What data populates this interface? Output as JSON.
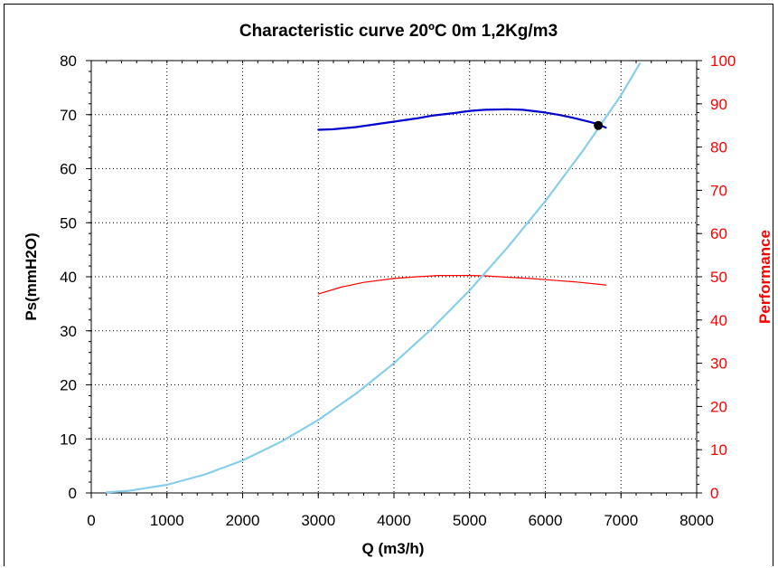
{
  "chart_data": {
    "type": "line",
    "title": "Characteristic curve 20ºC 0m 1,2Kg/m3",
    "xlabel": "Q (m3/h)",
    "ylabel": "Ps(mmH2O)",
    "y2label": "Performance",
    "xlim": [
      0,
      8000
    ],
    "ylim": [
      0,
      80
    ],
    "y2lim": [
      0,
      100
    ],
    "xticks": [
      "0",
      "1000",
      "2000",
      "3000",
      "4000",
      "5000",
      "6000",
      "7000",
      "8000"
    ],
    "yticks": [
      "0",
      "10",
      "20",
      "30",
      "40",
      "50",
      "60",
      "70",
      "80"
    ],
    "y2ticks": [
      "0",
      "10",
      "20",
      "30",
      "40",
      "50",
      "60",
      "70",
      "80",
      "90",
      "100"
    ],
    "grid": true,
    "series": [
      {
        "color": "#0000cc",
        "axis": "left",
        "x": [
          3000,
          3200,
          3500,
          3800,
          4000,
          4300,
          4500,
          4800,
          5000,
          5200,
          5500,
          5700,
          6000,
          6200,
          6400,
          6600,
          6700,
          6800
        ],
        "y": [
          67.2,
          67.3,
          67.7,
          68.3,
          68.7,
          69.3,
          69.8,
          70.3,
          70.7,
          70.9,
          71.0,
          70.9,
          70.4,
          69.9,
          69.3,
          68.6,
          68.2,
          67.6
        ]
      },
      {
        "color": "#ff0000",
        "axis": "right",
        "x": [
          3000,
          3300,
          3600,
          4000,
          4300,
          4600,
          4800,
          5000,
          5200,
          5500,
          5800,
          6100,
          6400,
          6800
        ],
        "y": [
          46.0,
          47.6,
          48.7,
          49.6,
          50.0,
          50.3,
          50.3,
          50.3,
          50.2,
          49.9,
          49.6,
          49.2,
          48.8,
          48.1
        ]
      },
      {
        "color": "#87ceeb",
        "axis": "left",
        "x": [
          200,
          500,
          1000,
          1500,
          2000,
          2500,
          3000,
          3500,
          4000,
          4500,
          5000,
          5500,
          6000,
          6500,
          7000,
          7250
        ],
        "y": [
          0.1,
          0.4,
          1.5,
          3.4,
          6.0,
          9.4,
          13.5,
          18.4,
          24.0,
          30.4,
          37.5,
          45.4,
          54.0,
          63.4,
          73.6,
          79.5
        ]
      }
    ],
    "points": [
      {
        "x": 6700,
        "y": 68.0,
        "color": "#000000"
      }
    ]
  }
}
